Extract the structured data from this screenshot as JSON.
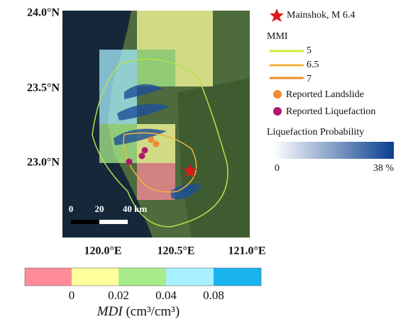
{
  "map": {
    "lat_labels": [
      "24.0°N",
      "23.5°N",
      "23.0°N"
    ],
    "lon_labels": [
      "120.0°E",
      "120.5°E",
      "121.0°E"
    ],
    "scale_bar": [
      "0",
      "20",
      "40 km"
    ]
  },
  "legend": {
    "mainshock": "Mainshok, M 6.4",
    "mmi_title": "MMI",
    "mmi_levels": [
      "5",
      "6.5",
      "7"
    ],
    "landslide": "Reported Landslide",
    "liquefaction": "Reported Liquefaction",
    "probability_title": "Liquefaction Probability",
    "probability_min": "0",
    "probability_max": "38 %"
  },
  "colorbar": {
    "ticks": [
      "0",
      "0.02",
      "0.04",
      "0.08"
    ],
    "title_var": "MDI",
    "title_unit": " (cm³/cm³)"
  }
}
